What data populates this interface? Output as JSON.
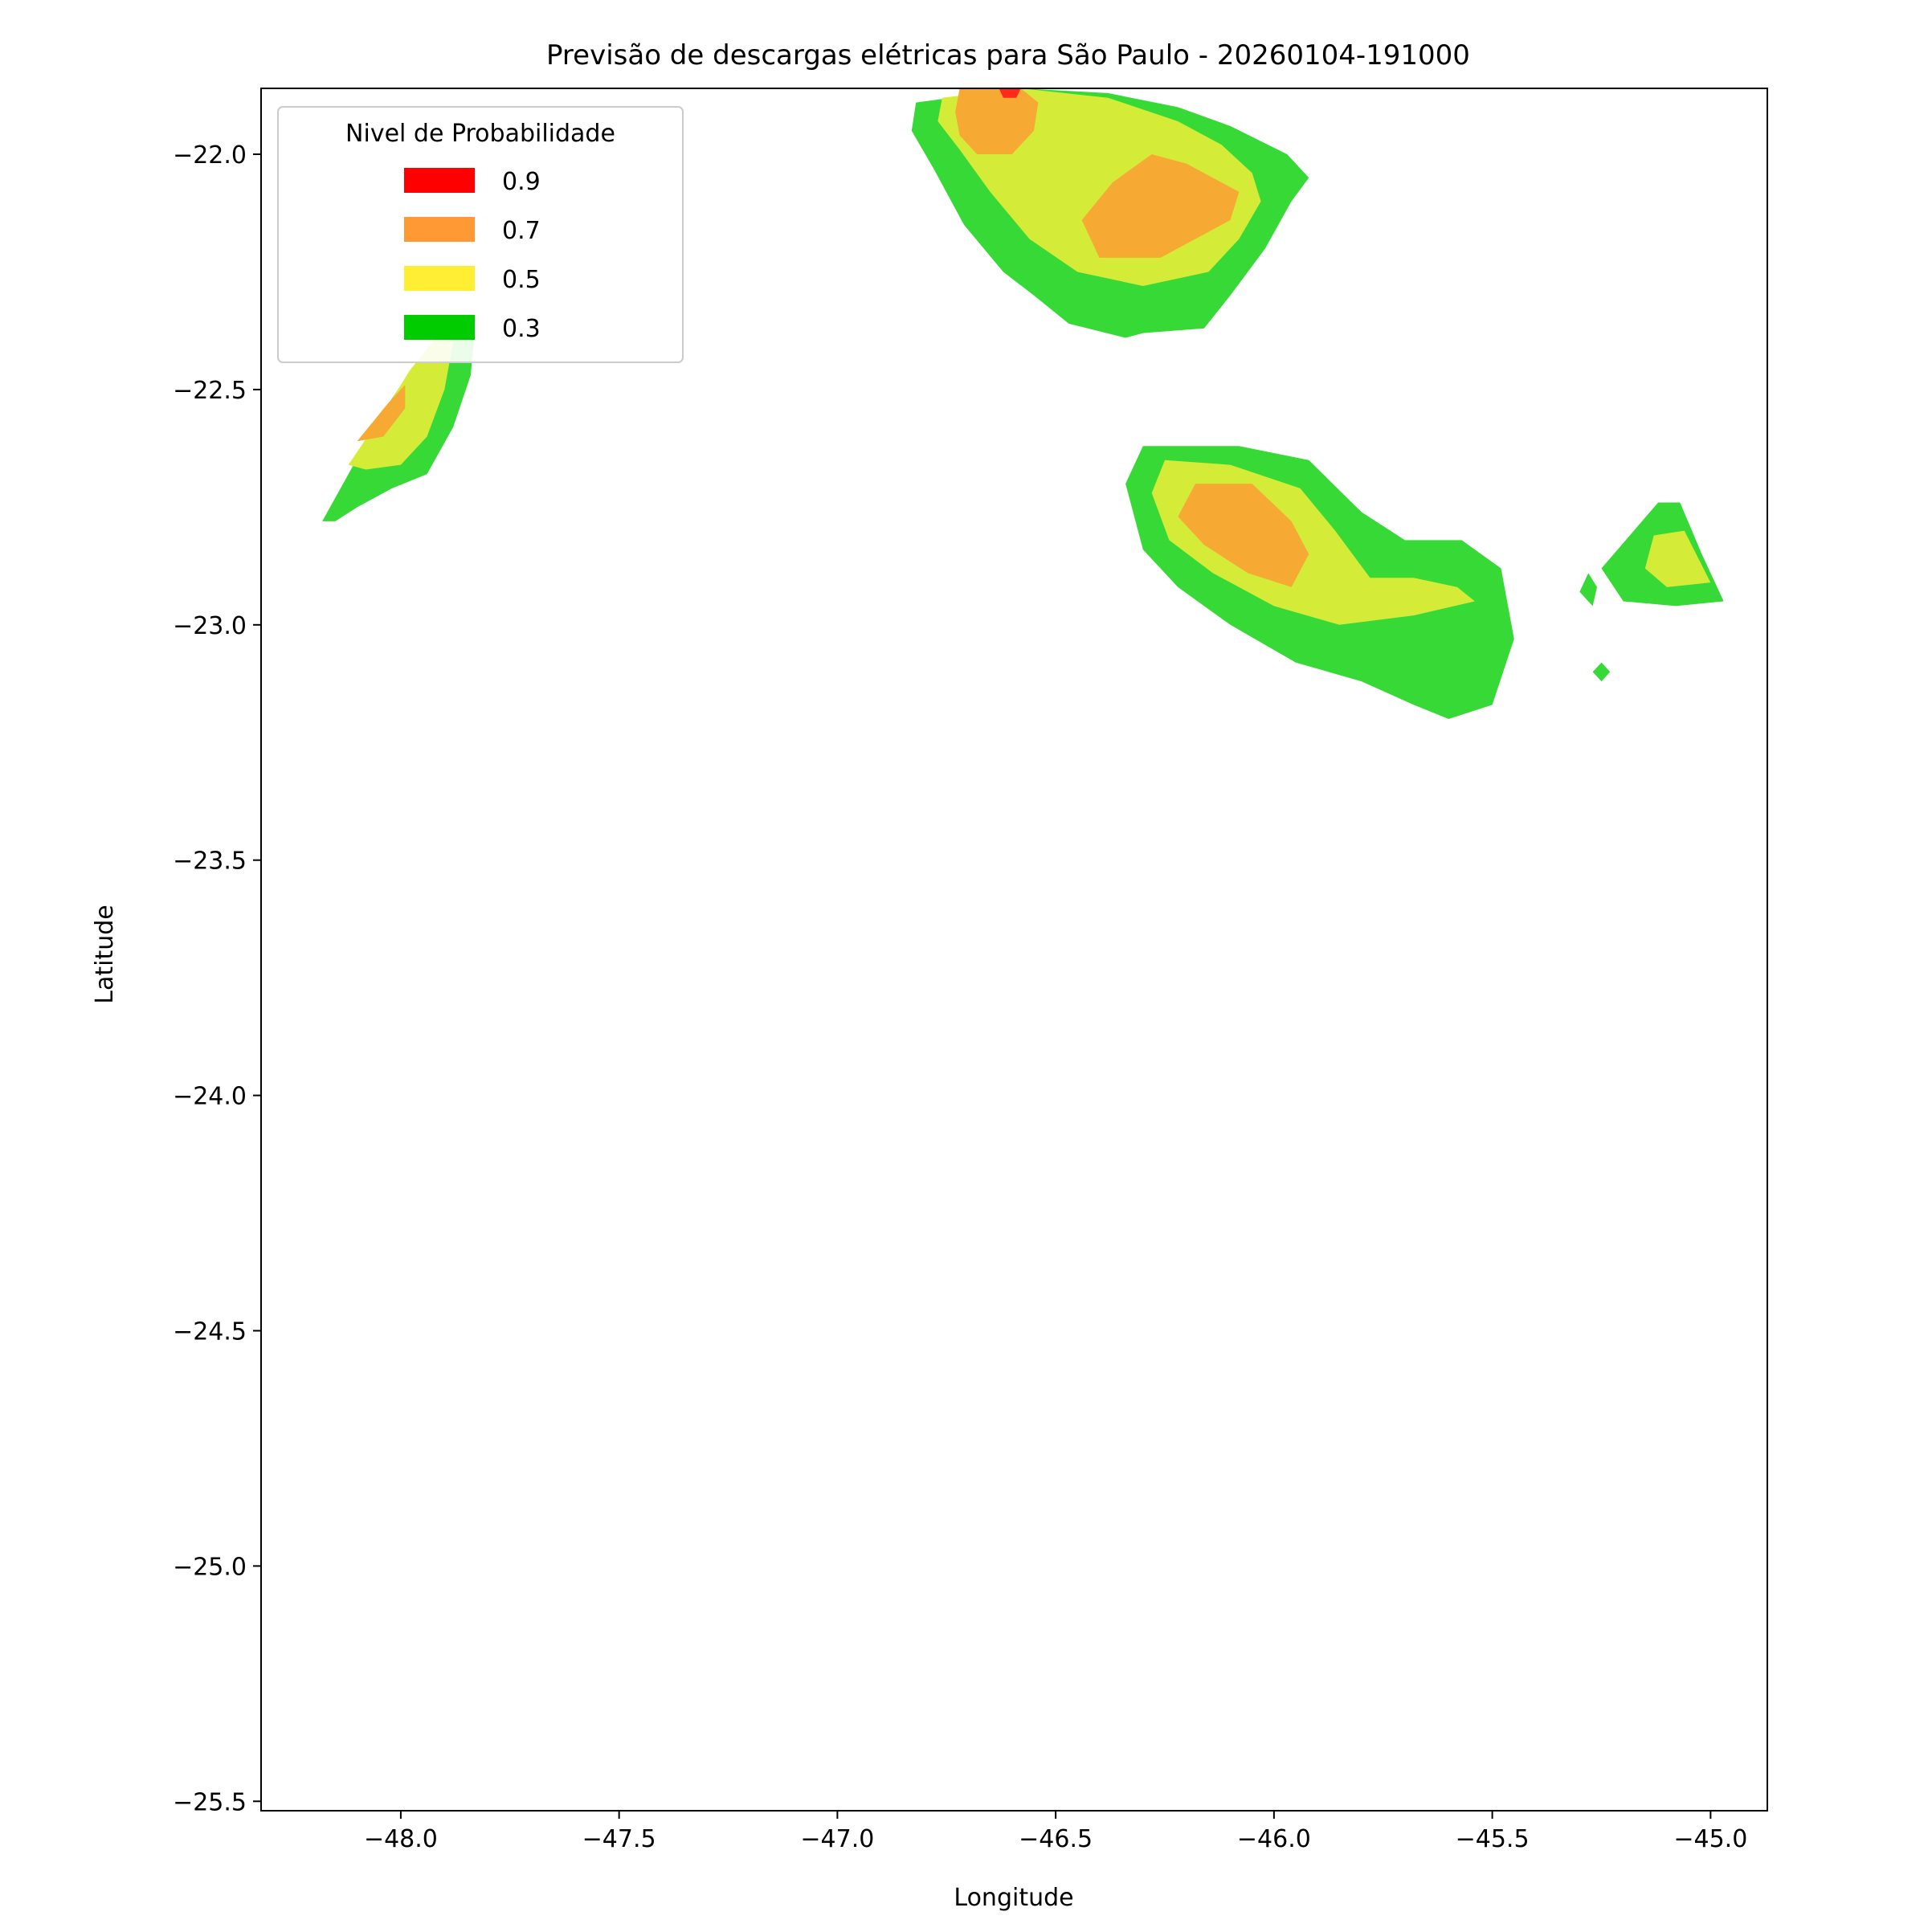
{
  "chart_data": {
    "type": "contour",
    "title": "Previsão de descargas elétricas para São Paulo - 20260104-191000",
    "xlabel": "Longitude",
    "ylabel": "Latitude",
    "xlim": [
      -48.32,
      -44.87
    ],
    "ylim": [
      -25.52,
      -21.86
    ],
    "x_ticks": [
      {
        "value": -48.0,
        "label": "−48.0"
      },
      {
        "value": -47.5,
        "label": "−47.5"
      },
      {
        "value": -47.0,
        "label": "−47.0"
      },
      {
        "value": -46.5,
        "label": "−46.5"
      },
      {
        "value": -46.0,
        "label": "−46.0"
      },
      {
        "value": -45.5,
        "label": "−45.5"
      },
      {
        "value": -45.0,
        "label": "−45.0"
      }
    ],
    "y_ticks": [
      {
        "value": -22.0,
        "label": "−22.0"
      },
      {
        "value": -22.5,
        "label": "−22.5"
      },
      {
        "value": -23.0,
        "label": "−23.0"
      },
      {
        "value": -23.5,
        "label": "−23.5"
      },
      {
        "value": -24.0,
        "label": "−24.0"
      },
      {
        "value": -24.5,
        "label": "−24.5"
      },
      {
        "value": -25.0,
        "label": "−25.0"
      },
      {
        "value": -25.5,
        "label": "−25.5"
      }
    ],
    "grid": false,
    "legend": {
      "title": "Nivel de Probabilidade",
      "placement": "top-left",
      "entries": [
        {
          "label": "0.9",
          "color": "#ff0000"
        },
        {
          "label": "0.7",
          "color": "#ff9933"
        },
        {
          "label": "0.5",
          "color": "#ffee33"
        },
        {
          "label": "0.3",
          "color": "#00cc00"
        }
      ]
    },
    "fill_colors": {
      "0.3": "#37d937",
      "0.5": "#d4ec38",
      "0.7": "#f6aa34",
      "0.9": "#ff2a1a"
    },
    "regions": [
      {
        "name": "north-cell",
        "level": "0.3",
        "points": [
          [
            -46.82,
            -21.89
          ],
          [
            -46.58,
            -21.86
          ],
          [
            -46.38,
            -21.87
          ],
          [
            -46.22,
            -21.9
          ],
          [
            -46.1,
            -21.94
          ],
          [
            -45.97,
            -22.0
          ],
          [
            -45.92,
            -22.05
          ],
          [
            -45.96,
            -22.1
          ],
          [
            -46.02,
            -22.2
          ],
          [
            -46.1,
            -22.3
          ],
          [
            -46.16,
            -22.37
          ],
          [
            -46.3,
            -22.38
          ],
          [
            -46.34,
            -22.39
          ],
          [
            -46.47,
            -22.36
          ],
          [
            -46.55,
            -22.3
          ],
          [
            -46.62,
            -22.25
          ],
          [
            -46.71,
            -22.15
          ],
          [
            -46.78,
            -22.03
          ],
          [
            -46.83,
            -21.95
          ]
        ]
      },
      {
        "name": "north-cell",
        "level": "0.5",
        "points": [
          [
            -46.76,
            -21.88
          ],
          [
            -46.58,
            -21.86
          ],
          [
            -46.38,
            -21.88
          ],
          [
            -46.22,
            -21.93
          ],
          [
            -46.12,
            -21.98
          ],
          [
            -46.05,
            -22.04
          ],
          [
            -46.03,
            -22.1
          ],
          [
            -46.08,
            -22.18
          ],
          [
            -46.15,
            -22.25
          ],
          [
            -46.3,
            -22.28
          ],
          [
            -46.45,
            -22.25
          ],
          [
            -46.56,
            -22.18
          ],
          [
            -46.65,
            -22.08
          ],
          [
            -46.72,
            -21.99
          ],
          [
            -46.77,
            -21.93
          ]
        ]
      },
      {
        "name": "north-cell",
        "level": "0.7",
        "points": [
          [
            -46.72,
            -21.86
          ],
          [
            -46.58,
            -21.86
          ],
          [
            -46.54,
            -21.89
          ],
          [
            -46.55,
            -21.95
          ],
          [
            -46.6,
            -22.0
          ],
          [
            -46.68,
            -22.0
          ],
          [
            -46.72,
            -21.96
          ],
          [
            -46.73,
            -21.91
          ]
        ]
      },
      {
        "name": "north-cell",
        "level": "0.7",
        "points": [
          [
            -46.44,
            -22.14
          ],
          [
            -46.37,
            -22.06
          ],
          [
            -46.28,
            -22.0
          ],
          [
            -46.2,
            -22.02
          ],
          [
            -46.08,
            -22.08
          ],
          [
            -46.1,
            -22.14
          ],
          [
            -46.16,
            -22.17
          ],
          [
            -46.26,
            -22.22
          ],
          [
            -46.4,
            -22.22
          ]
        ]
      },
      {
        "name": "north-cell",
        "level": "0.9",
        "points": [
          [
            -46.63,
            -21.86
          ],
          [
            -46.58,
            -21.86
          ],
          [
            -46.59,
            -21.88
          ],
          [
            -46.62,
            -21.88
          ]
        ]
      },
      {
        "name": "west-cell",
        "level": "0.3",
        "points": [
          [
            -48.18,
            -22.78
          ],
          [
            -48.12,
            -22.68
          ],
          [
            -48.05,
            -22.56
          ],
          [
            -47.97,
            -22.45
          ],
          [
            -47.89,
            -22.37
          ],
          [
            -47.83,
            -22.37
          ],
          [
            -47.84,
            -22.47
          ],
          [
            -47.88,
            -22.58
          ],
          [
            -47.94,
            -22.68
          ],
          [
            -48.02,
            -22.71
          ],
          [
            -48.1,
            -22.75
          ],
          [
            -48.15,
            -22.78
          ]
        ]
      },
      {
        "name": "west-cell",
        "level": "0.5",
        "points": [
          [
            -48.12,
            -22.66
          ],
          [
            -48.04,
            -22.55
          ],
          [
            -47.98,
            -22.46
          ],
          [
            -47.92,
            -22.39
          ],
          [
            -47.88,
            -22.4
          ],
          [
            -47.9,
            -22.5
          ],
          [
            -47.94,
            -22.6
          ],
          [
            -48.0,
            -22.66
          ],
          [
            -48.08,
            -22.67
          ]
        ]
      },
      {
        "name": "west-cell",
        "level": "0.7",
        "points": [
          [
            -48.1,
            -22.61
          ],
          [
            -48.03,
            -22.53
          ],
          [
            -47.99,
            -22.49
          ],
          [
            -47.99,
            -22.54
          ],
          [
            -48.04,
            -22.6
          ]
        ]
      },
      {
        "name": "east-cell",
        "level": "0.3",
        "points": [
          [
            -46.34,
            -22.7
          ],
          [
            -46.3,
            -22.62
          ],
          [
            -46.08,
            -22.62
          ],
          [
            -45.92,
            -22.65
          ],
          [
            -45.8,
            -22.76
          ],
          [
            -45.7,
            -22.82
          ],
          [
            -45.57,
            -22.82
          ],
          [
            -45.48,
            -22.88
          ],
          [
            -45.45,
            -23.03
          ],
          [
            -45.5,
            -23.17
          ],
          [
            -45.6,
            -23.2
          ],
          [
            -45.68,
            -23.17
          ],
          [
            -45.8,
            -23.12
          ],
          [
            -45.95,
            -23.08
          ],
          [
            -46.1,
            -23.0
          ],
          [
            -46.22,
            -22.92
          ],
          [
            -46.3,
            -22.84
          ]
        ]
      },
      {
        "name": "east-cell",
        "level": "0.5",
        "points": [
          [
            -46.28,
            -22.72
          ],
          [
            -46.25,
            -22.65
          ],
          [
            -46.1,
            -22.66
          ],
          [
            -45.94,
            -22.71
          ],
          [
            -45.86,
            -22.8
          ],
          [
            -45.78,
            -22.9
          ],
          [
            -45.68,
            -22.9
          ],
          [
            -45.58,
            -22.92
          ],
          [
            -45.54,
            -22.95
          ],
          [
            -45.68,
            -22.98
          ],
          [
            -45.85,
            -23.0
          ],
          [
            -46.0,
            -22.96
          ],
          [
            -46.14,
            -22.89
          ],
          [
            -46.24,
            -22.82
          ]
        ]
      },
      {
        "name": "east-cell",
        "level": "0.7",
        "points": [
          [
            -46.22,
            -22.77
          ],
          [
            -46.18,
            -22.7
          ],
          [
            -46.05,
            -22.7
          ],
          [
            -45.96,
            -22.78
          ],
          [
            -45.92,
            -22.85
          ],
          [
            -45.96,
            -22.92
          ],
          [
            -46.06,
            -22.89
          ],
          [
            -46.16,
            -22.83
          ]
        ]
      },
      {
        "name": "east-cell",
        "level": "0.3",
        "points": [
          [
            -45.68,
            -22.98
          ],
          [
            -45.53,
            -22.96
          ],
          [
            -45.53,
            -23.02
          ],
          [
            -45.68,
            -23.02
          ]
        ]
      },
      {
        "name": "far-east-cell",
        "level": "0.3",
        "points": [
          [
            -45.25,
            -22.88
          ],
          [
            -45.12,
            -22.74
          ],
          [
            -45.07,
            -22.74
          ],
          [
            -45.02,
            -22.85
          ],
          [
            -44.97,
            -22.95
          ],
          [
            -45.08,
            -22.96
          ],
          [
            -45.2,
            -22.95
          ]
        ]
      },
      {
        "name": "far-east-cell",
        "level": "0.5",
        "points": [
          [
            -45.15,
            -22.88
          ],
          [
            -45.13,
            -22.81
          ],
          [
            -45.06,
            -22.8
          ],
          [
            -45.0,
            -22.91
          ],
          [
            -45.1,
            -22.92
          ]
        ]
      },
      {
        "name": "far-east-cell",
        "level": "0.3",
        "points": [
          [
            -45.3,
            -22.93
          ],
          [
            -45.28,
            -22.89
          ],
          [
            -45.26,
            -22.92
          ],
          [
            -45.27,
            -22.96
          ]
        ]
      },
      {
        "name": "small-cell",
        "level": "0.3",
        "points": [
          [
            -45.27,
            -23.1
          ],
          [
            -45.25,
            -23.08
          ],
          [
            -45.23,
            -23.1
          ],
          [
            -45.25,
            -23.12
          ]
        ]
      }
    ]
  }
}
